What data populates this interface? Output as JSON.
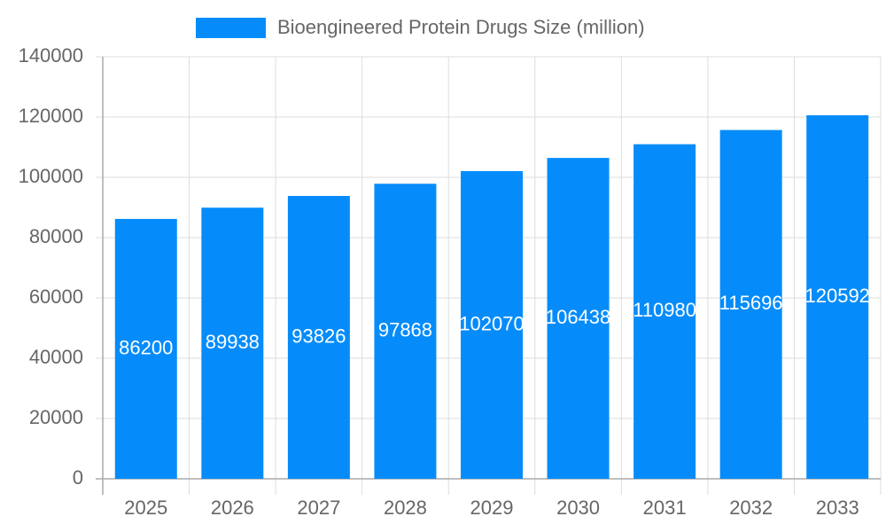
{
  "chart_data": {
    "type": "bar",
    "categories": [
      "2025",
      "2026",
      "2027",
      "2028",
      "2029",
      "2030",
      "2031",
      "2032",
      "2033"
    ],
    "series": [
      {
        "name": "Bioengineered Protein Drugs Size (million)",
        "color": "#068cfa",
        "values": [
          86200,
          89938,
          93826,
          97868,
          102070,
          106438,
          110980,
          115696,
          120592
        ]
      }
    ],
    "ylim": [
      0,
      140000
    ],
    "yticks": [
      0,
      20000,
      40000,
      60000,
      80000,
      100000,
      120000,
      140000
    ],
    "grid": true,
    "legend": "top",
    "data_labels": true
  }
}
